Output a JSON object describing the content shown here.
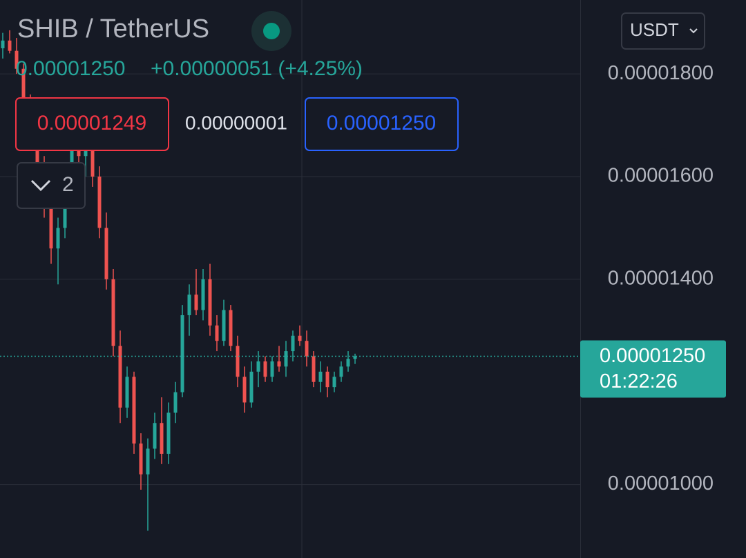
{
  "header": {
    "symbol": "SHIB / TetherUS",
    "price": "0.00001250",
    "change": "+0.00000051 (+4.25%)",
    "bid": "0.00001249",
    "spread": "0.00000001",
    "ask": "0.00001250",
    "indicators_count": "2",
    "currency": "USDT"
  },
  "chart_data": {
    "type": "candlestick",
    "up_color": "#26a69a",
    "down_color": "#ef5350",
    "ylim": [
      8.57e-06,
      1.944e-05
    ],
    "yticks": [
      {
        "value": 1.8e-05,
        "label": "0.00001800"
      },
      {
        "value": 1.6e-05,
        "label": "0.00001600"
      },
      {
        "value": 1.4e-05,
        "label": "0.00001400"
      },
      {
        "value": 1e-05,
        "label": "0.00001000"
      }
    ],
    "grid": true,
    "last_price": {
      "value": 1.25e-05,
      "label": "0.00001250"
    },
    "countdown": "01:22:26",
    "open": [
      1.85e-05,
      1.865e-05,
      1.845e-05,
      1.81e-05,
      1.75e-05,
      1.68e-05,
      1.62e-05,
      1.54e-05,
      1.46e-05,
      1.5e-05,
      1.6e-05,
      1.67e-05,
      1.64e-05,
      1.66e-05,
      1.6e-05,
      1.5e-05,
      1.4e-05,
      1.27e-05,
      1.15e-05,
      1.21e-05,
      1.08e-05,
      1.02e-05,
      1.07e-05,
      1.12e-05,
      1.06e-05,
      1.14e-05,
      1.18e-05,
      1.33e-05,
      1.37e-05,
      1.34e-05,
      1.4e-05,
      1.31e-05,
      1.28e-05,
      1.34e-05,
      1.27e-05,
      1.21e-05,
      1.16e-05,
      1.22e-05,
      1.24e-05,
      1.21e-05,
      1.24e-05,
      1.23e-05,
      1.26e-05,
      1.29e-05,
      1.28e-05,
      1.25e-05,
      1.2e-05,
      1.22e-05,
      1.19e-05,
      1.21e-05,
      1.23e-05,
      1.245e-05
    ],
    "high": [
      1.88e-05,
      1.885e-05,
      1.87e-05,
      1.82e-05,
      1.76e-05,
      1.7e-05,
      1.64e-05,
      1.56e-05,
      1.52e-05,
      1.62e-05,
      1.69e-05,
      1.7e-05,
      1.69e-05,
      1.67e-05,
      1.62e-05,
      1.53e-05,
      1.42e-05,
      1.3e-05,
      1.23e-05,
      1.22e-05,
      1.1e-05,
      1.09e-05,
      1.14e-05,
      1.17e-05,
      1.16e-05,
      1.2e-05,
      1.35e-05,
      1.39e-05,
      1.42e-05,
      1.42e-05,
      1.43e-05,
      1.33e-05,
      1.36e-05,
      1.35e-05,
      1.29e-05,
      1.23e-05,
      1.24e-05,
      1.26e-05,
      1.25e-05,
      1.25e-05,
      1.27e-05,
      1.28e-05,
      1.3e-05,
      1.31e-05,
      1.3e-05,
      1.26e-05,
      1.24e-05,
      1.23e-05,
      1.22e-05,
      1.24e-05,
      1.26e-05,
      1.255e-05
    ],
    "low": [
      1.83e-05,
      1.84e-05,
      1.8e-05,
      1.74e-05,
      1.66e-05,
      1.6e-05,
      1.52e-05,
      1.43e-05,
      1.39e-05,
      1.48e-05,
      1.58e-05,
      1.62e-05,
      1.6e-05,
      1.58e-05,
      1.48e-05,
      1.38e-05,
      1.25e-05,
      1.12e-05,
      1.13e-05,
      1.06e-05,
      9.9e-06,
      9.1e-06,
      1.05e-05,
      1.04e-05,
      1.04e-05,
      1.12e-05,
      1.17e-05,
      1.29e-05,
      1.33e-05,
      1.32e-05,
      1.29e-05,
      1.26e-05,
      1.27e-05,
      1.26e-05,
      1.19e-05,
      1.14e-05,
      1.15e-05,
      1.19e-05,
      1.2e-05,
      1.2e-05,
      1.22e-05,
      1.21e-05,
      1.24e-05,
      1.27e-05,
      1.23e-05,
      1.19e-05,
      1.18e-05,
      1.17e-05,
      1.18e-05,
      1.2e-05,
      1.22e-05,
      1.235e-05
    ],
    "close": [
      1.865e-05,
      1.845e-05,
      1.81e-05,
      1.75e-05,
      1.68e-05,
      1.62e-05,
      1.54e-05,
      1.46e-05,
      1.5e-05,
      1.6e-05,
      1.67e-05,
      1.64e-05,
      1.66e-05,
      1.6e-05,
      1.5e-05,
      1.4e-05,
      1.27e-05,
      1.15e-05,
      1.21e-05,
      1.08e-05,
      1.02e-05,
      1.07e-05,
      1.12e-05,
      1.06e-05,
      1.14e-05,
      1.18e-05,
      1.33e-05,
      1.37e-05,
      1.34e-05,
      1.4e-05,
      1.31e-05,
      1.28e-05,
      1.34e-05,
      1.27e-05,
      1.21e-05,
      1.16e-05,
      1.22e-05,
      1.24e-05,
      1.21e-05,
      1.24e-05,
      1.23e-05,
      1.26e-05,
      1.29e-05,
      1.28e-05,
      1.25e-05,
      1.2e-05,
      1.22e-05,
      1.19e-05,
      1.21e-05,
      1.23e-05,
      1.245e-05,
      1.25e-05
    ]
  }
}
